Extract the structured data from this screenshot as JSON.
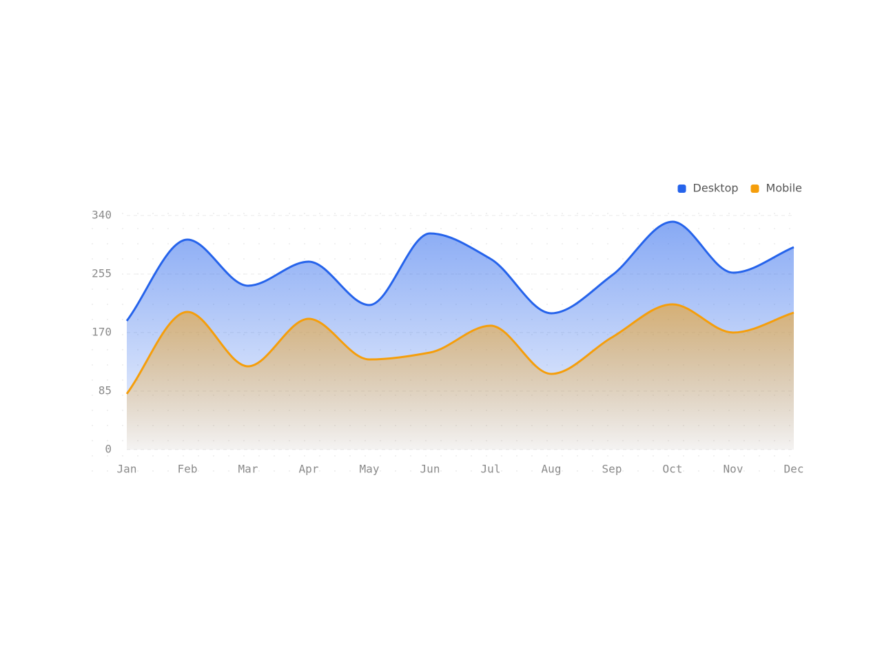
{
  "chart_data": {
    "type": "area",
    "categories": [
      "Jan",
      "Feb",
      "Mar",
      "Apr",
      "May",
      "Jun",
      "Jul",
      "Aug",
      "Sep",
      "Oct",
      "Nov",
      "Dec"
    ],
    "series": [
      {
        "name": "Desktop",
        "color": "#2563eb",
        "values": [
          187,
          305,
          238,
          273,
          210,
          314,
          277,
          198,
          253,
          331,
          257,
          294
        ]
      },
      {
        "name": "Mobile",
        "color": "#f59e0b",
        "values": [
          81,
          200,
          121,
          190,
          131,
          141,
          180,
          110,
          163,
          211,
          170,
          199
        ]
      }
    ],
    "ylim": [
      0,
      340
    ],
    "yticks": [
      0,
      85,
      170,
      255,
      340
    ],
    "grid": true,
    "legend": "top-right"
  }
}
